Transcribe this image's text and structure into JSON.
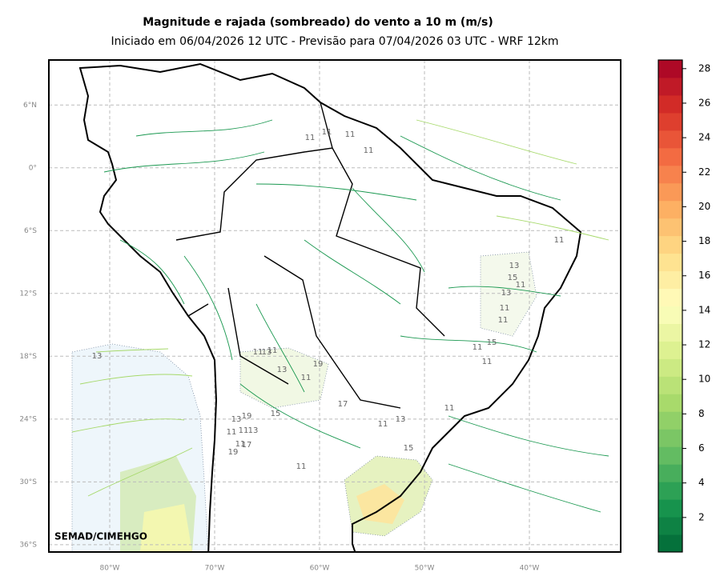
{
  "header": {
    "title": "Magnitude e rajada (sombreado) do vento a 10 m (m/s)",
    "subtitle": "Iniciado em 06/04/2026 12 UTC - Previsão para 07/04/2026 03 UTC - WRF 12km"
  },
  "map": {
    "lat_ticks": [
      {
        "value": 6,
        "label": "6°N"
      },
      {
        "value": 0,
        "label": "0°"
      },
      {
        "value": -6,
        "label": "6°S"
      },
      {
        "value": -12,
        "label": "12°S"
      },
      {
        "value": -18,
        "label": "18°S"
      },
      {
        "value": -24,
        "label": "24°S"
      },
      {
        "value": -30,
        "label": "30°S"
      },
      {
        "value": -36,
        "label": "36°S"
      }
    ],
    "lon_ticks": [
      {
        "value": -80,
        "label": "80°W"
      },
      {
        "value": -70,
        "label": "70°W"
      },
      {
        "value": -60,
        "label": "60°W"
      },
      {
        "value": -50,
        "label": "50°W"
      },
      {
        "value": -40,
        "label": "40°W"
      }
    ],
    "lonlim": [
      -85.8,
      -31.3
    ],
    "latlim": [
      10.3,
      -36.7
    ],
    "grid": true,
    "credit": "SEMAD/CIMEHGO",
    "contour_labels": [
      "11",
      "11",
      "11",
      "11",
      "11",
      "13",
      "15",
      "11",
      "13",
      "11",
      "11",
      "11",
      "15",
      "11",
      "13",
      "13",
      "11",
      "11",
      "13",
      "11",
      "19",
      "17",
      "13",
      "19",
      "11",
      "11",
      "13",
      "11",
      "15",
      "19",
      "17",
      "13",
      "15",
      "11",
      "11",
      "11"
    ]
  },
  "colorbar": {
    "ylim": [
      0,
      28.5
    ],
    "yticks": [
      2,
      4,
      6,
      8,
      10,
      12,
      14,
      16,
      18,
      20,
      22,
      24,
      26,
      28
    ]
  }
}
